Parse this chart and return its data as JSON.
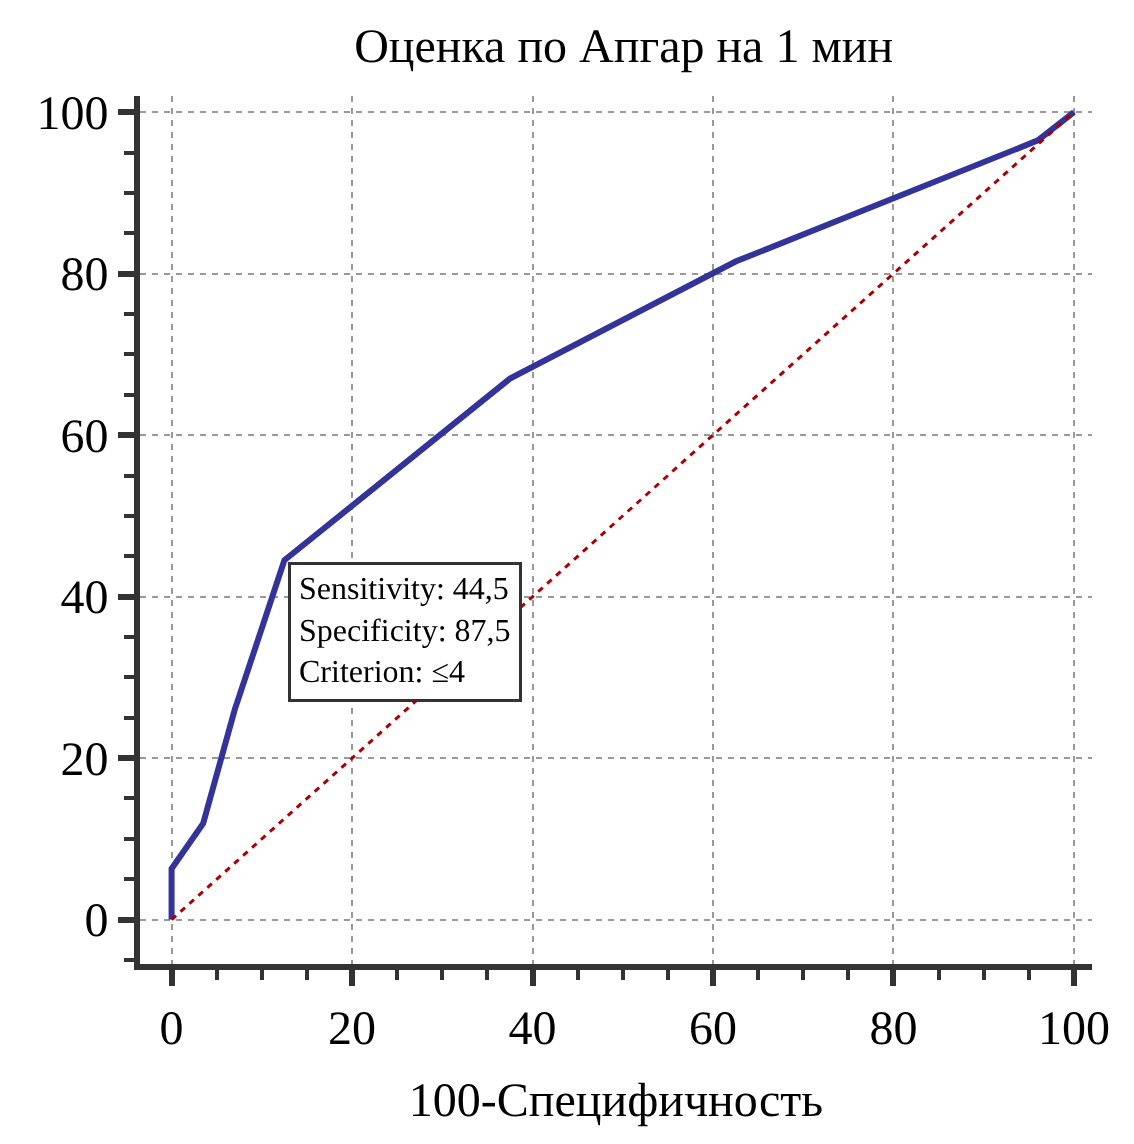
{
  "chart_data": {
    "type": "line",
    "title": "Оценка по Апгар на 1 мин",
    "xlabel": "100-Специфичность",
    "series": [
      {
        "color": "#333399",
        "x": [
          0,
          0,
          3.5,
          7,
          12.5,
          37.5,
          62.5,
          96,
          100
        ],
        "values": [
          0,
          6.3,
          11.9,
          26,
          44.5,
          67,
          81.5,
          96.5,
          100
        ],
        "line_style": "solid"
      },
      {
        "color": "#aa0000",
        "x": [
          0,
          100
        ],
        "values": [
          0,
          100
        ],
        "line_style": "dotted"
      }
    ],
    "annotations": [
      {
        "text": "Sensitivity: 44,5\nSpecificity: 87,5\nCriterion: ≤4",
        "x": 12.5,
        "y": 44.5
      }
    ],
    "xlim": [
      -3.5,
      102
    ],
    "ylim": [
      -5.5,
      102
    ],
    "xticks": [
      0,
      20,
      40,
      60,
      80,
      100
    ],
    "yticks": [
      0,
      20,
      40,
      60,
      80,
      100
    ],
    "grid": true,
    "marker": "none"
  }
}
